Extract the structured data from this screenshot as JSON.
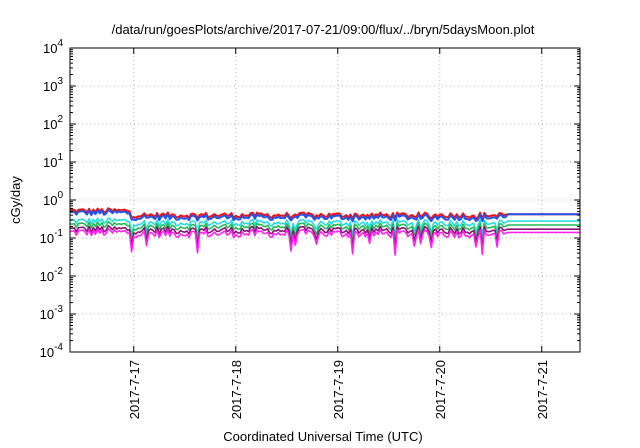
{
  "chart_data": {
    "type": "line",
    "title": "/data/run/goesPlots/archive/2017-07-21/09:00/flux/../bryn/5daysMoon.plot",
    "xlabel": "Coordinated Universal Time (UTC)",
    "ylabel": "cGy/day",
    "yscale": "log",
    "ylim": [
      0.0001,
      10000
    ],
    "xlim": [
      "2017-07-16 09:00",
      "2017-07-21 09:00"
    ],
    "x_ticks": [
      "2017-7-17",
      "2017-7-18",
      "2017-7-19",
      "2017-7-20",
      "2017-7-21"
    ],
    "y_ticks": [
      {
        "mantissa": "10",
        "exp": "-4"
      },
      {
        "mantissa": "10",
        "exp": "-3"
      },
      {
        "mantissa": "10",
        "exp": "-2"
      },
      {
        "mantissa": "10",
        "exp": "-1"
      },
      {
        "mantissa": "10",
        "exp": "0"
      },
      {
        "mantissa": "10",
        "exp": "1"
      },
      {
        "mantissa": "10",
        "exp": "2"
      },
      {
        "mantissa": "10",
        "exp": "3"
      },
      {
        "mantissa": "10",
        "exp": "4"
      }
    ],
    "grid": true,
    "legend": "none",
    "series": [
      {
        "color": "#ee1111",
        "level": 0.4,
        "start_level": 0.52,
        "gap_level": 0.42
      },
      {
        "color": "#2255ee",
        "level": 0.35,
        "start_level": 0.46,
        "gap_level": 0.42
      },
      {
        "color": "#22dddd",
        "level": 0.25,
        "start_level": 0.28,
        "gap_level": 0.28
      },
      {
        "color": "#22bb55",
        "level": 0.2,
        "start_level": 0.22,
        "gap_level": 0.22
      },
      {
        "color": "#881177",
        "level": 0.16,
        "start_level": 0.17,
        "gap_level": 0.17
      },
      {
        "color": "#ff22ee",
        "level": 0.13,
        "start_level": 0.14,
        "gap_level": 0.14
      }
    ],
    "data_gap": [
      "2017-07-20 16:00",
      "2017-07-21 09:00"
    ]
  }
}
